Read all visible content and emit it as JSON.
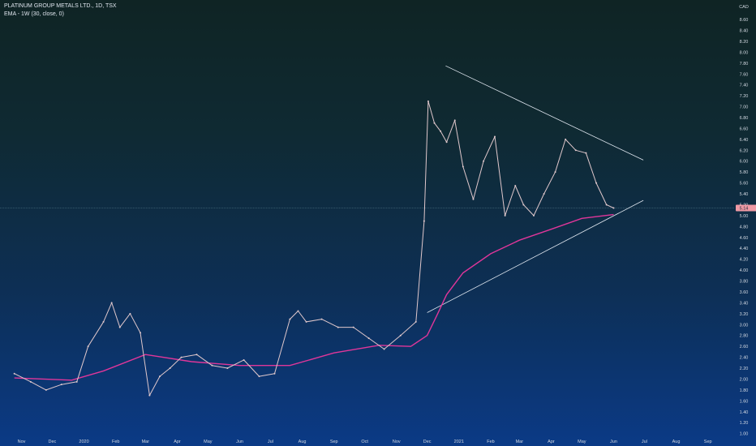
{
  "chart_data": {
    "type": "line",
    "title": "PLATINUM GROUP METALS LTD., 1D, TSX",
    "indicator": "EMA - 1W (30, close, 0)",
    "currency": "CAD",
    "last_price": "5.14",
    "y_ticks": [
      "8.60",
      "8.40",
      "8.20",
      "8.00",
      "7.80",
      "7.60",
      "7.40",
      "7.20",
      "7.00",
      "6.80",
      "6.60",
      "6.40",
      "6.20",
      "6.00",
      "5.80",
      "5.60",
      "5.40",
      "5.20",
      "5.00",
      "4.80",
      "4.60",
      "4.40",
      "4.20",
      "4.00",
      "3.80",
      "3.60",
      "3.40",
      "3.20",
      "3.00",
      "2.80",
      "2.60",
      "2.40",
      "2.20",
      "2.00",
      "1.80",
      "1.60",
      "1.40",
      "1.20",
      "1.00"
    ],
    "x_ticks": [
      "Nov",
      "Dec",
      "2020",
      "Feb",
      "Mar",
      "Apr",
      "May",
      "Jun",
      "Jul",
      "Aug",
      "Sep",
      "Oct",
      "Nov",
      "Dec",
      "2021",
      "Feb",
      "Mar",
      "Apr",
      "May",
      "Jun",
      "Jul",
      "Aug",
      "Sep"
    ],
    "ylim": [
      0.95,
      8.75
    ],
    "grid": false,
    "colors": {
      "price": "#e0c8cc",
      "ema": "#e0369a",
      "trendline": "#dfe6ef",
      "price_line": "#6f9aa8",
      "last_price_bg": "#ef9aa5"
    },
    "series": [
      {
        "name": "PLATINUM GROUP METALS LTD.",
        "x": [
          "2019-10-25",
          "2019-11-10",
          "2019-11-25",
          "2019-12-10",
          "2019-12-25",
          "2020-01-05",
          "2020-01-20",
          "2020-01-28",
          "2020-02-05",
          "2020-02-15",
          "2020-02-25",
          "2020-03-05",
          "2020-03-15",
          "2020-03-25",
          "2020-04-05",
          "2020-04-20",
          "2020-05-05",
          "2020-05-20",
          "2020-06-05",
          "2020-06-20",
          "2020-07-05",
          "2020-07-20",
          "2020-07-28",
          "2020-08-05",
          "2020-08-20",
          "2020-09-05",
          "2020-09-20",
          "2020-10-05",
          "2020-10-20",
          "2020-11-05",
          "2020-11-20",
          "2020-11-28",
          "2020-12-02",
          "2020-12-08",
          "2020-12-14",
          "2020-12-20",
          "2020-12-28",
          "2021-01-05",
          "2021-01-15",
          "2021-01-25",
          "2021-02-05",
          "2021-02-15",
          "2021-02-25",
          "2021-03-05",
          "2021-03-15",
          "2021-03-25",
          "2021-04-05",
          "2021-04-15",
          "2021-04-25",
          "2021-05-05",
          "2021-05-15",
          "2021-05-25",
          "2021-06-01"
        ],
        "values": [
          2.1,
          1.95,
          1.8,
          1.9,
          1.95,
          2.6,
          3.05,
          3.4,
          2.95,
          3.2,
          2.85,
          1.7,
          2.05,
          2.2,
          2.4,
          2.45,
          2.25,
          2.2,
          2.35,
          2.05,
          2.1,
          3.1,
          3.25,
          3.05,
          3.1,
          2.95,
          2.95,
          2.75,
          2.55,
          2.8,
          3.05,
          4.9,
          7.1,
          6.7,
          6.55,
          6.35,
          6.75,
          5.9,
          5.3,
          6.0,
          6.45,
          5.0,
          5.55,
          5.2,
          5.0,
          5.4,
          5.8,
          6.4,
          6.2,
          6.15,
          5.6,
          5.2,
          5.14
        ]
      },
      {
        "name": "EMA - 1W (30, close, 0)",
        "x": [
          "2019-10-25",
          "2019-12-20",
          "2020-01-20",
          "2020-03-01",
          "2020-04-15",
          "2020-06-01",
          "2020-07-20",
          "2020-09-01",
          "2020-10-15",
          "2020-11-15",
          "2020-12-01",
          "2020-12-10",
          "2020-12-20",
          "2021-01-05",
          "2021-02-01",
          "2021-03-01",
          "2021-04-01",
          "2021-05-01",
          "2021-06-01"
        ],
        "values": [
          2.02,
          1.98,
          2.15,
          2.45,
          2.32,
          2.25,
          2.25,
          2.48,
          2.62,
          2.6,
          2.8,
          3.15,
          3.55,
          3.95,
          4.3,
          4.55,
          4.75,
          4.95,
          5.02
        ]
      }
    ],
    "trendlines": [
      {
        "name": "upper trendline",
        "x": [
          "2020-12-19",
          "2021-06-30"
        ],
        "values": [
          7.75,
          6.02
        ]
      },
      {
        "name": "lower trendline",
        "x": [
          "2020-12-01",
          "2021-06-30"
        ],
        "values": [
          3.22,
          5.28
        ]
      }
    ]
  }
}
